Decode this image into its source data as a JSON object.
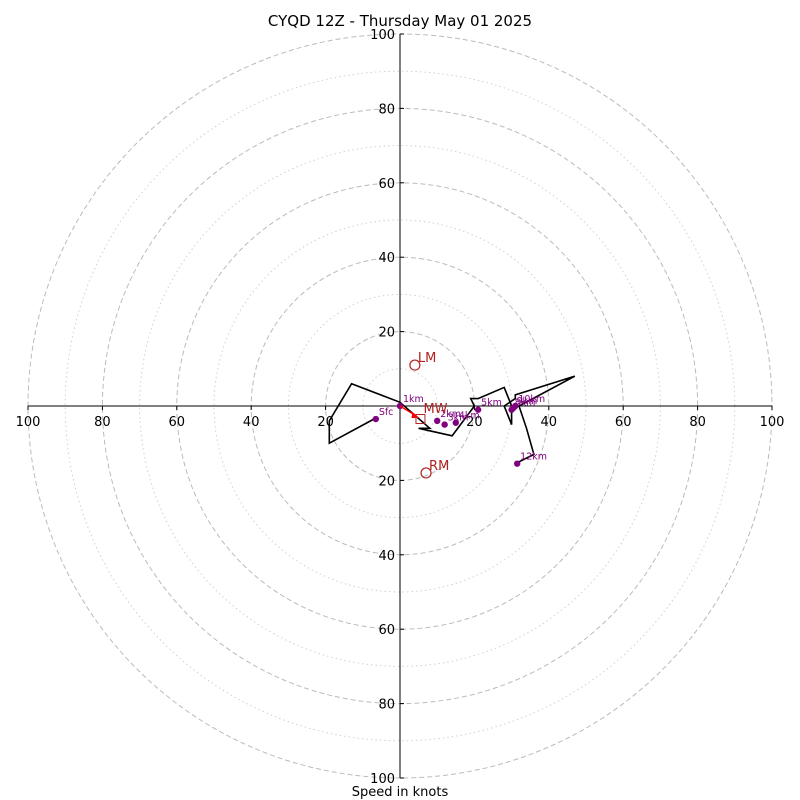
{
  "title": "CYQD 12Z - Thursday May 01 2025",
  "xlabel": "Speed in knots",
  "colors": {
    "hodograph_line": "#000000",
    "height_marker": "#800080",
    "storm_motion": "#b22222",
    "mean_wind_vector": "#ff0000",
    "ring_major": "#bbbbbb",
    "ring_minor": "#d0d0d0"
  },
  "chart_data": {
    "type": "hodograph",
    "units": "knots",
    "xlim": [
      -100,
      100
    ],
    "ylim": [
      -100,
      100
    ],
    "major_rings": [
      20,
      40,
      60,
      80,
      100
    ],
    "minor_rings": [
      10,
      30,
      50,
      70,
      90
    ],
    "x_ticks": [
      "100",
      "80",
      "60",
      "40",
      "20",
      "20",
      "40",
      "60",
      "80",
      "100"
    ],
    "y_ticks": [
      "100",
      "80",
      "60",
      "40",
      "20",
      "20",
      "40",
      "60",
      "80",
      "100"
    ],
    "hodograph": [
      [
        -7,
        -3.5
      ],
      [
        -19,
        -10
      ],
      [
        -19,
        -4
      ],
      [
        -13,
        6
      ],
      [
        0,
        1
      ],
      [
        8,
        -6
      ],
      [
        5,
        -6
      ],
      [
        14,
        -8
      ],
      [
        20,
        0
      ],
      [
        19,
        2
      ],
      [
        21,
        2
      ],
      [
        28,
        5
      ],
      [
        30,
        0
      ],
      [
        30,
        -5
      ],
      [
        28,
        0
      ],
      [
        31,
        2
      ],
      [
        31,
        3
      ],
      [
        47,
        8
      ],
      [
        32,
        0
      ],
      [
        34,
        -6
      ],
      [
        36,
        -13
      ],
      [
        31,
        -15.5
      ]
    ],
    "height_markers": [
      {
        "label": "Sfc",
        "u": -6.5,
        "v": -3.5
      },
      {
        "label": "1km",
        "u": 0,
        "v": 0
      },
      {
        "label": "2km",
        "u": 10,
        "v": -4
      },
      {
        "label": "3km",
        "u": 12,
        "v": -5
      },
      {
        "label": "4km",
        "u": 15,
        "v": -4.5
      },
      {
        "label": "5km",
        "u": 21,
        "v": -1
      },
      {
        "label": "8km",
        "u": 30,
        "v": -1
      },
      {
        "label": "9km",
        "u": 30.5,
        "v": -0.5
      },
      {
        "label": "10km",
        "u": 31,
        "v": 0
      },
      {
        "label": "12km",
        "u": 31.5,
        "v": -15.5
      }
    ],
    "storm_motions": [
      {
        "label": "LM",
        "u": 4,
        "v": 11
      },
      {
        "label": "RM",
        "u": 7,
        "v": -18
      },
      {
        "label": "MW",
        "u": 5.5,
        "v": -3.5
      }
    ]
  }
}
